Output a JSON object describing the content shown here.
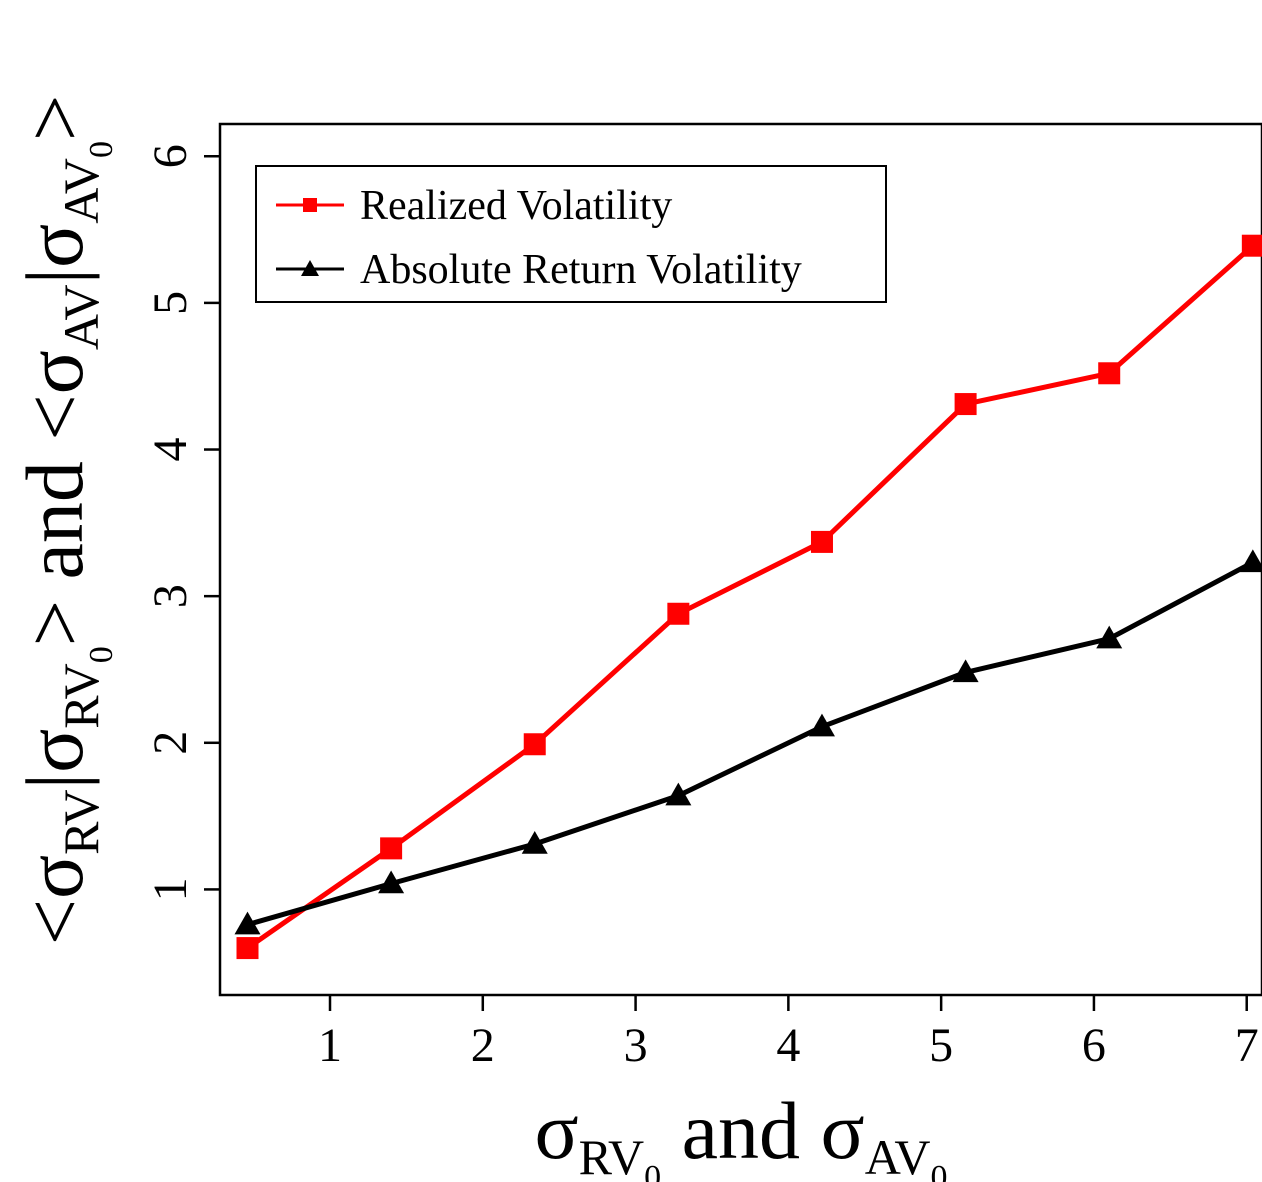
{
  "chart_data": {
    "type": "line",
    "title": "",
    "xlabel": {
      "parts": [
        {
          "text": "σ",
          "style": "base"
        },
        {
          "text": "RV",
          "style": "sub"
        },
        {
          "text": "0",
          "style": "subsub"
        },
        {
          "text": " and σ",
          "style": "base"
        },
        {
          "text": "AV",
          "style": "sub"
        },
        {
          "text": "0",
          "style": "subsub"
        }
      ]
    },
    "ylabel": {
      "parts": [
        {
          "text": "<σ",
          "style": "base"
        },
        {
          "text": "RV",
          "style": "sub"
        },
        {
          "text": "|σ",
          "style": "base"
        },
        {
          "text": "RV",
          "style": "sub"
        },
        {
          "text": "0",
          "style": "subsub"
        },
        {
          "text": ">  and  <σ",
          "style": "base"
        },
        {
          "text": "AV",
          "style": "sub"
        },
        {
          "text": "|σ",
          "style": "base"
        },
        {
          "text": "AV",
          "style": "sub"
        },
        {
          "text": "0",
          "style": "subsub"
        },
        {
          "text": ">",
          "style": "base"
        }
      ]
    },
    "xlim": [
      0.28,
      7.1
    ],
    "ylim": [
      0.28,
      6.22
    ],
    "xticks": [
      "1",
      "2",
      "3",
      "4",
      "5",
      "6",
      "7"
    ],
    "yticks": [
      "1",
      "2",
      "3",
      "4",
      "5",
      "6"
    ],
    "grid": false,
    "legend_position": "top-left",
    "series": [
      {
        "name": "Realized Volatility",
        "color": "#ff0000",
        "marker": "square",
        "points": [
          {
            "x": 0.46,
            "y": 0.6
          },
          {
            "x": 1.4,
            "y": 1.28
          },
          {
            "x": 2.34,
            "y": 1.99
          },
          {
            "x": 3.28,
            "y": 2.88
          },
          {
            "x": 4.22,
            "y": 3.37
          },
          {
            "x": 5.16,
            "y": 4.31
          },
          {
            "x": 6.1,
            "y": 4.52
          },
          {
            "x": 7.04,
            "y": 5.39
          }
        ]
      },
      {
        "name": "Absolute Return Volatility",
        "color": "#000000",
        "marker": "triangle",
        "points": [
          {
            "x": 0.46,
            "y": 0.76
          },
          {
            "x": 1.4,
            "y": 1.04
          },
          {
            "x": 2.34,
            "y": 1.31
          },
          {
            "x": 3.28,
            "y": 1.64
          },
          {
            "x": 4.22,
            "y": 2.11
          },
          {
            "x": 5.16,
            "y": 2.48
          },
          {
            "x": 6.1,
            "y": 2.71
          },
          {
            "x": 7.04,
            "y": 3.23
          }
        ]
      }
    ]
  }
}
